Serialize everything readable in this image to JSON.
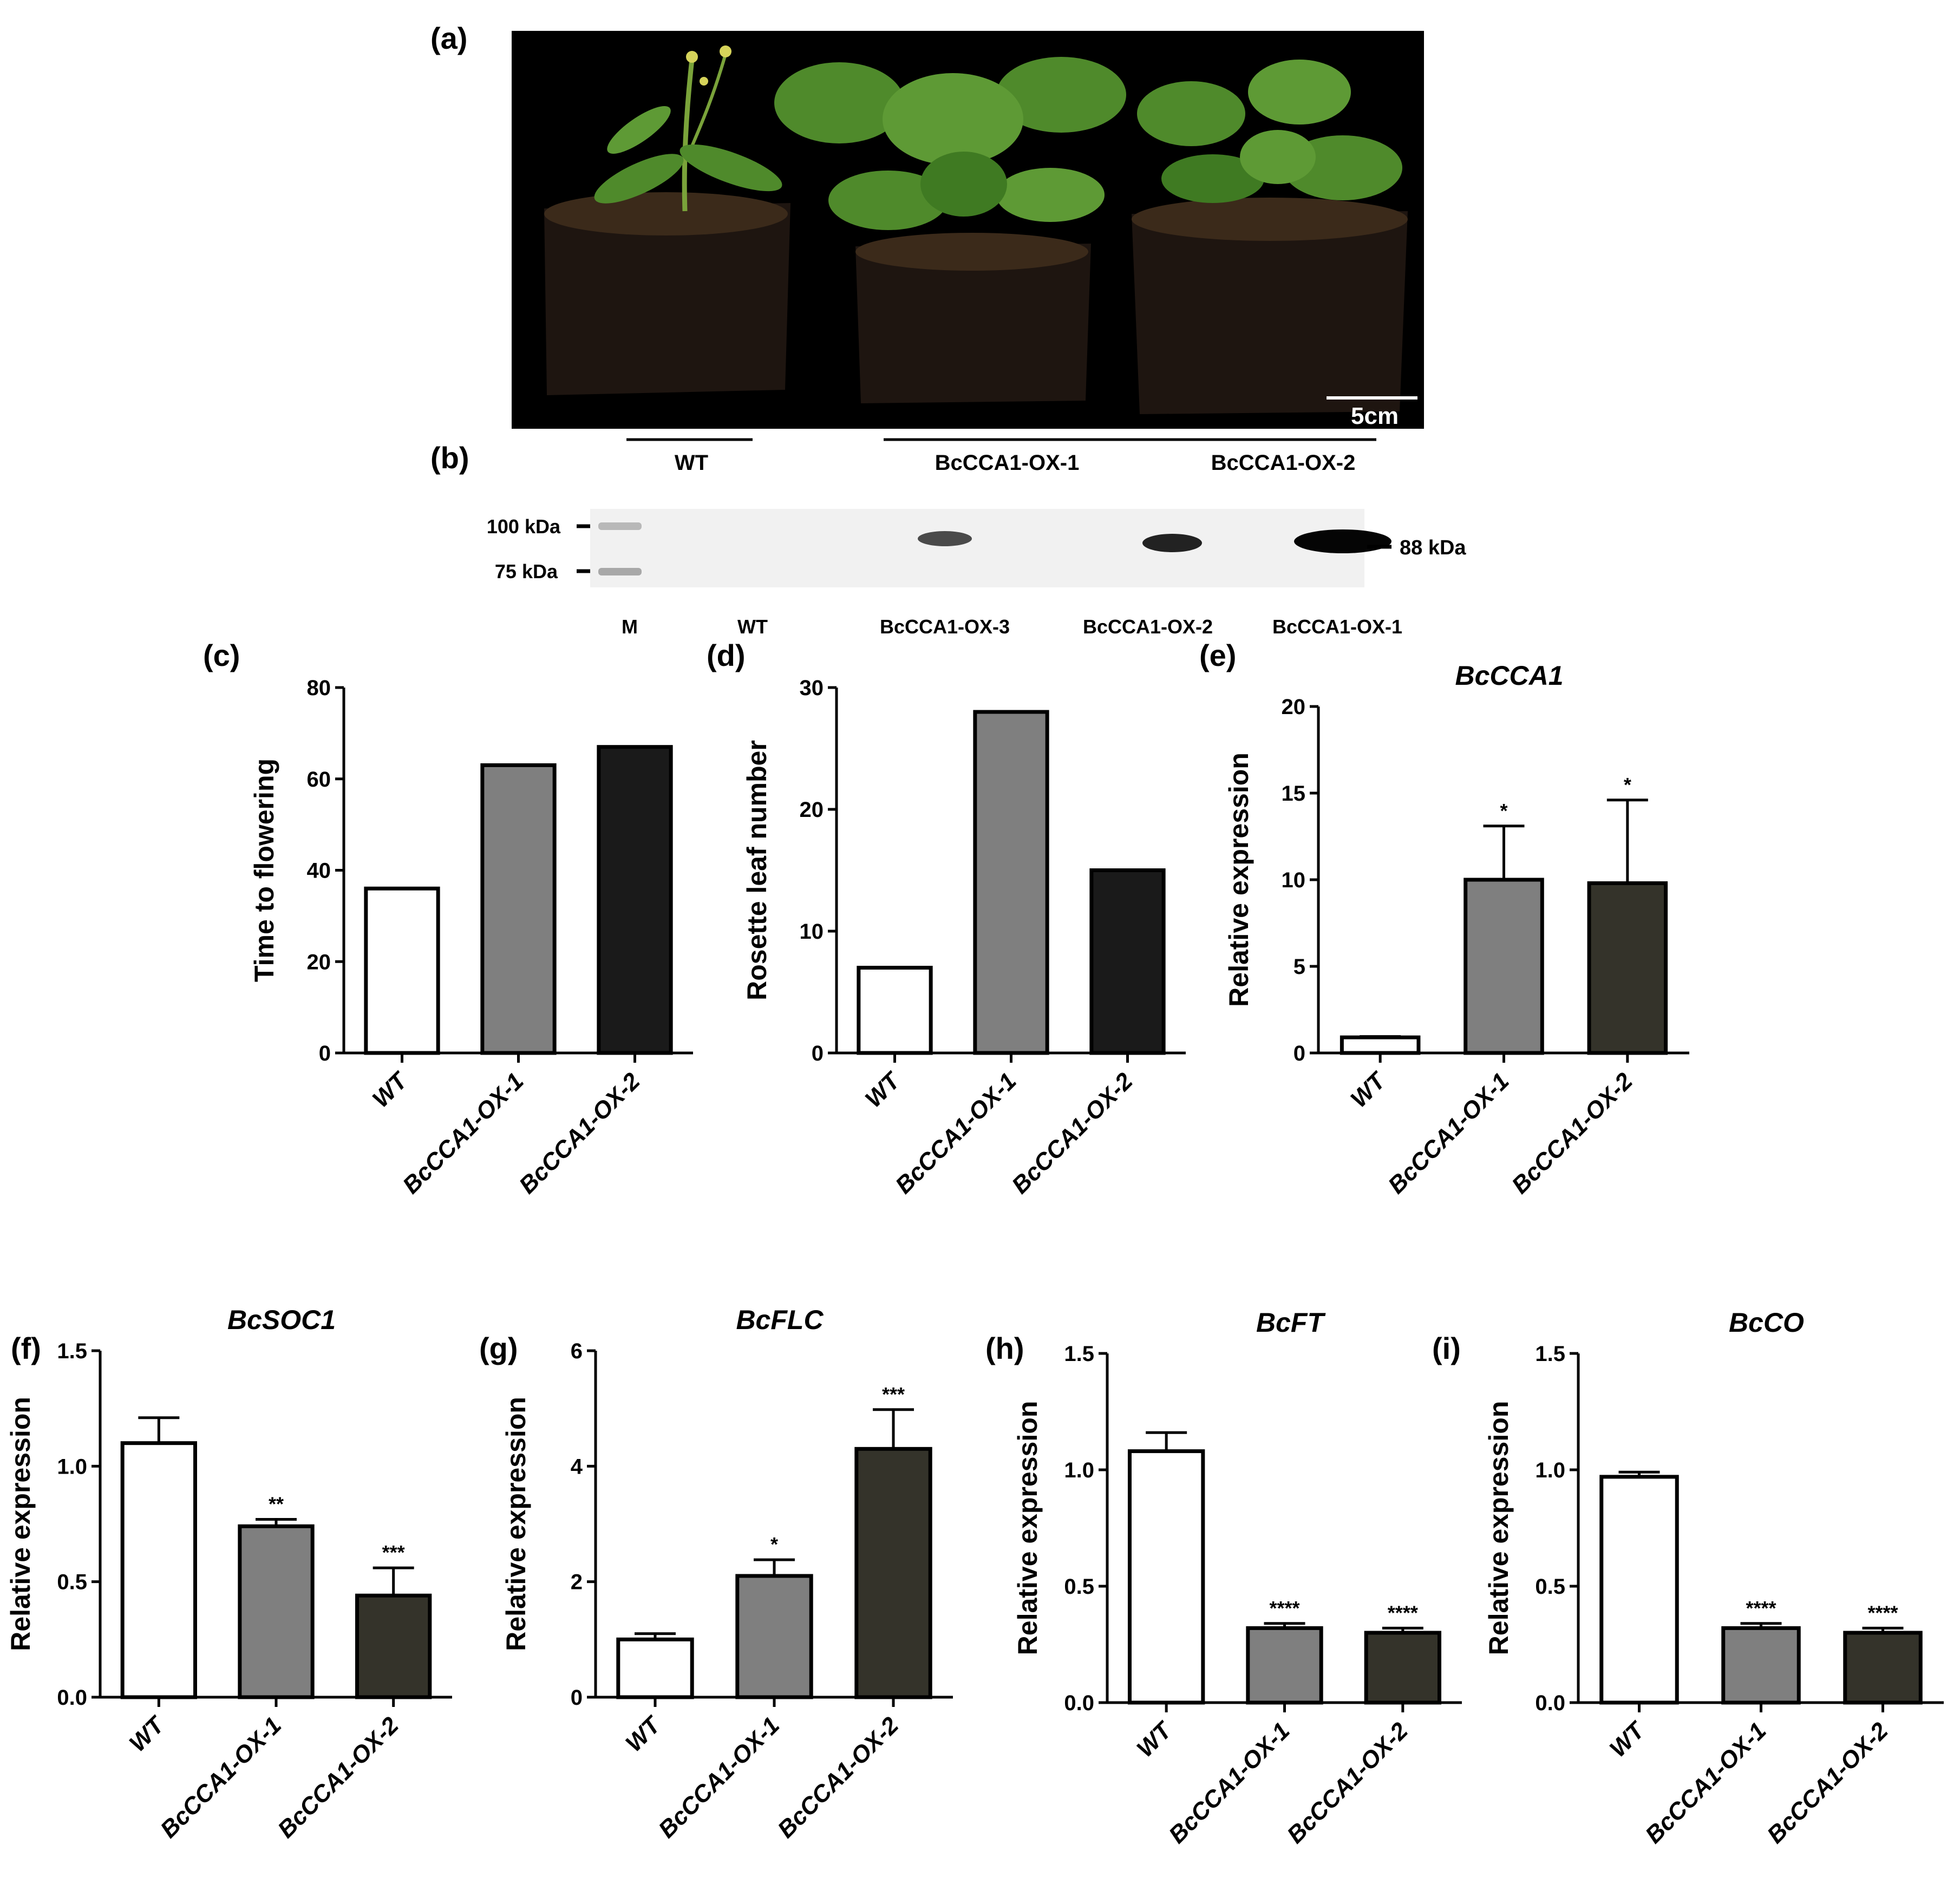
{
  "panel_labels": {
    "a": "(a)",
    "b": "(b)",
    "c": "(c)",
    "d": "(d)",
    "e": "(e)",
    "f": "(f)",
    "g": "(g)",
    "h": "(h)",
    "i": "(i)"
  },
  "photo": {
    "scale_bar_label": "5cm",
    "background": "#000000",
    "leaf_color": "#4f8a2b",
    "soil_color": "#3b2a1a"
  },
  "blot": {
    "group_labels": [
      "WT",
      "BcCCA1-OX-1",
      "BcCCA1-OX-2"
    ],
    "markers": [
      "100 kDa",
      "75 kDa"
    ],
    "band_label": "88 kDa",
    "lane_labels": [
      "M",
      "WT",
      "BcCCA1-OX-3",
      "BcCCA1-OX-2",
      "BcCCA1-OX-1"
    ]
  },
  "chart_data": [
    {
      "id": "c",
      "type": "bar",
      "title": "",
      "ylabel": "Time to flowering",
      "categories": [
        "WT",
        "BcCCA1-OX-1",
        "BcCCA1-OX-2"
      ],
      "values": [
        36,
        63,
        67
      ],
      "errors": null,
      "significance": [
        "",
        "",
        ""
      ],
      "ylim": [
        0,
        80
      ],
      "yticks": [
        0,
        20,
        40,
        60,
        80
      ],
      "tick_labels": [
        "0",
        "20",
        "40",
        "60",
        "80"
      ],
      "colors": [
        "#ffffff",
        "#7f7f7f",
        "#1a1a1a"
      ]
    },
    {
      "id": "d",
      "type": "bar",
      "title": "",
      "ylabel": "Rosette leaf number",
      "categories": [
        "WT",
        "BcCCA1-OX-1",
        "BcCCA1-OX-2"
      ],
      "values": [
        7,
        28,
        15
      ],
      "errors": null,
      "significance": [
        "",
        "",
        ""
      ],
      "ylim": [
        0,
        30
      ],
      "yticks": [
        0,
        10,
        20,
        30
      ],
      "tick_labels": [
        "0",
        "10",
        "20",
        "30"
      ],
      "colors": [
        "#ffffff",
        "#7f7f7f",
        "#1a1a1a"
      ]
    },
    {
      "id": "e",
      "type": "bar",
      "title": "BcCCA1",
      "ylabel": "Relative expression",
      "categories": [
        "WT",
        "BcCCA1-OX-1",
        "BcCCA1-OX-2"
      ],
      "values": [
        0.9,
        10.0,
        9.8
      ],
      "errors": [
        0.05,
        3.1,
        4.8
      ],
      "significance": [
        "",
        "*",
        "*"
      ],
      "ylim": [
        0,
        20
      ],
      "yticks": [
        0,
        5,
        10,
        15,
        20
      ],
      "tick_labels": [
        "0",
        "5",
        "10",
        "15",
        "20"
      ],
      "colors": [
        "#ffffff",
        "#7f7f7f",
        "#34332a"
      ]
    },
    {
      "id": "f",
      "type": "bar",
      "title": "BcSOC1",
      "ylabel": "Relative expression",
      "categories": [
        "WT",
        "BcCCA1-OX-1",
        "BcCCA1-OX-2"
      ],
      "values": [
        1.1,
        0.74,
        0.44
      ],
      "errors": [
        0.11,
        0.03,
        0.12
      ],
      "significance": [
        "",
        "**",
        "***"
      ],
      "ylim": [
        0,
        1.5
      ],
      "yticks": [
        0,
        0.5,
        1.0,
        1.5
      ],
      "tick_labels": [
        "0.0",
        "0.5",
        "1.0",
        "1.5"
      ],
      "colors": [
        "#ffffff",
        "#7f7f7f",
        "#34332a"
      ]
    },
    {
      "id": "g",
      "type": "bar",
      "title": "BcFLC",
      "ylabel": "Relative expression",
      "categories": [
        "WT",
        "BcCCA1-OX-1",
        "BcCCA1-OX-2"
      ],
      "values": [
        1.0,
        2.1,
        4.3
      ],
      "errors": [
        0.1,
        0.28,
        0.68
      ],
      "significance": [
        "",
        "*",
        "***"
      ],
      "ylim": [
        0,
        6
      ],
      "yticks": [
        0,
        2,
        4,
        6
      ],
      "tick_labels": [
        "0",
        "2",
        "4",
        "6"
      ],
      "colors": [
        "#ffffff",
        "#7f7f7f",
        "#34332a"
      ]
    },
    {
      "id": "h",
      "type": "bar",
      "title": "BcFT",
      "ylabel": "Relative expression",
      "categories": [
        "WT",
        "BcCCA1-OX-1",
        "BcCCA1-OX-2"
      ],
      "values": [
        1.08,
        0.32,
        0.3
      ],
      "errors": [
        0.08,
        0.02,
        0.02
      ],
      "significance": [
        "",
        "****",
        "****"
      ],
      "ylim": [
        0,
        1.5
      ],
      "yticks": [
        0,
        0.5,
        1.0,
        1.5
      ],
      "tick_labels": [
        "0.0",
        "0.5",
        "1.0",
        "1.5"
      ],
      "colors": [
        "#ffffff",
        "#7f7f7f",
        "#34332a"
      ]
    },
    {
      "id": "i",
      "type": "bar",
      "title": "BcCO",
      "ylabel": "Relative expression",
      "categories": [
        "WT",
        "BcCCA1-OX-1",
        "BcCCA1-OX-2"
      ],
      "values": [
        0.97,
        0.32,
        0.3
      ],
      "errors": [
        0.02,
        0.02,
        0.02
      ],
      "significance": [
        "",
        "****",
        "****"
      ],
      "ylim": [
        0,
        1.5
      ],
      "yticks": [
        0,
        0.5,
        1.0,
        1.5
      ],
      "tick_labels": [
        "0.0",
        "0.5",
        "1.0",
        "1.5"
      ],
      "colors": [
        "#ffffff",
        "#7f7f7f",
        "#34332a"
      ]
    }
  ]
}
